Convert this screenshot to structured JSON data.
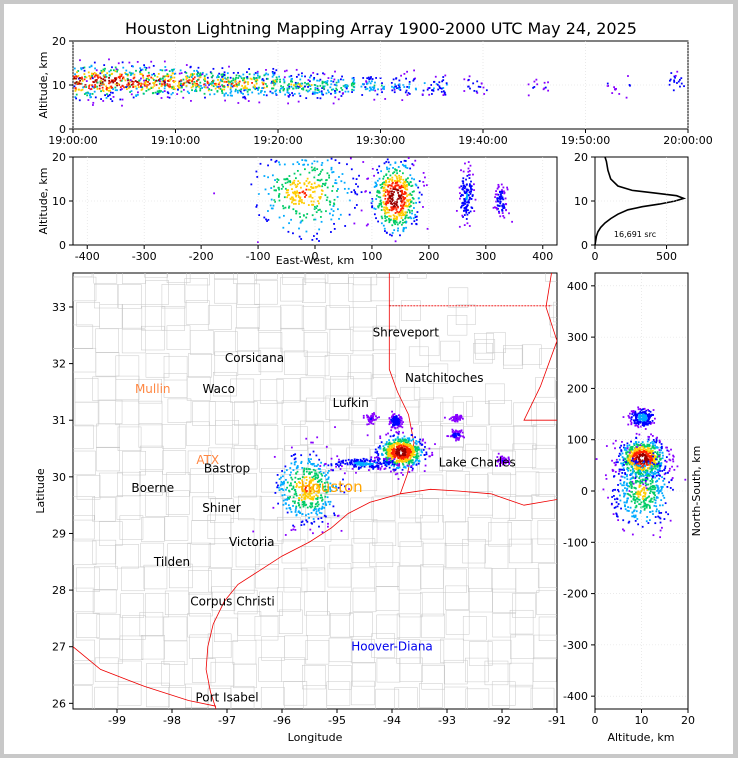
{
  "title": "Houston Lightning Mapping Array 1900-2000 UTC May 24, 2025",
  "colors": {
    "frame_border": "#c8c8c8",
    "state_border": "#ee0000",
    "county_border": "#c8c8c8",
    "profile_line": "#000000",
    "density_scale": [
      "#ffffff",
      "#8800ff",
      "#0000ff",
      "#00aaff",
      "#00cc66",
      "#ffcc00",
      "#ff2200",
      "#990000",
      "#ffffff"
    ]
  },
  "chart_data": [
    {
      "id": "time-height",
      "type": "scatter",
      "xlabel": "",
      "ylabel": "Altitude, km",
      "xlim": [
        "19:00:00",
        "20:00:00"
      ],
      "ylim": [
        0,
        20
      ],
      "xticks": [
        "19:00:00",
        "19:10:00",
        "19:20:00",
        "19:30:00",
        "19:40:00",
        "19:50:00",
        "20:00:00"
      ],
      "yticks": [
        0,
        10,
        20
      ],
      "clusters": [
        {
          "x_min": 0.0,
          "y_center": 11,
          "y_spread": 3.5,
          "density": 1.0
        },
        {
          "x_min": 2.5,
          "y_center": 11,
          "y_spread": 3.5,
          "density": 1.0
        },
        {
          "x_min": 5.0,
          "y_center": 11,
          "y_spread": 3.2,
          "density": 0.95
        },
        {
          "x_min": 7.5,
          "y_center": 11,
          "y_spread": 3.2,
          "density": 0.9
        },
        {
          "x_min": 10.0,
          "y_center": 11,
          "y_spread": 3.0,
          "density": 0.85
        },
        {
          "x_min": 12.5,
          "y_center": 10.5,
          "y_spread": 3.0,
          "density": 0.8
        },
        {
          "x_min": 15.0,
          "y_center": 10.5,
          "y_spread": 3.0,
          "density": 0.75
        },
        {
          "x_min": 17.5,
          "y_center": 10.5,
          "y_spread": 2.8,
          "density": 0.7
        },
        {
          "x_min": 20.0,
          "y_center": 10,
          "y_spread": 2.8,
          "density": 0.6
        },
        {
          "x_min": 22.5,
          "y_center": 10,
          "y_spread": 2.5,
          "density": 0.55
        },
        {
          "x_min": 25.0,
          "y_center": 10,
          "y_spread": 2.5,
          "density": 0.5
        },
        {
          "x_min": 28.0,
          "y_center": 10,
          "y_spread": 2.2,
          "density": 0.4
        },
        {
          "x_min": 31.0,
          "y_center": 10,
          "y_spread": 2.2,
          "density": 0.35
        },
        {
          "x_min": 34.0,
          "y_center": 10,
          "y_spread": 2.0,
          "density": 0.3
        },
        {
          "x_min": 38.0,
          "y_center": 10,
          "y_spread": 2.0,
          "density": 0.15
        },
        {
          "x_min": 44.0,
          "y_center": 10,
          "y_spread": 2.0,
          "density": 0.1
        },
        {
          "x_min": 52.0,
          "y_center": 10,
          "y_spread": 2.0,
          "density": 0.1
        },
        {
          "x_min": 58.0,
          "y_center": 11,
          "y_spread": 2.5,
          "density": 0.2
        }
      ]
    },
    {
      "id": "east-west-height",
      "type": "scatter",
      "xlabel": "East-West, km",
      "ylabel": "Altitude, km",
      "xlim": [
        -425,
        425
      ],
      "ylim": [
        0,
        20
      ],
      "xticks": [
        -400,
        -300,
        -200,
        -100,
        0,
        100,
        200,
        300,
        400
      ],
      "yticks": [
        0,
        10,
        20
      ],
      "clusters": [
        {
          "x": -20,
          "y": 12,
          "sx": 45,
          "sy": 5,
          "density": 0.7
        },
        {
          "x": 140,
          "y": 11,
          "sx": 20,
          "sy": 4,
          "density": 1.0
        },
        {
          "x": 265,
          "y": 11,
          "sx": 6,
          "sy": 3,
          "density": 0.25
        },
        {
          "x": 325,
          "y": 10,
          "sx": 6,
          "sy": 2,
          "density": 0.15
        }
      ]
    },
    {
      "id": "altitude-histogram",
      "type": "line",
      "xlabel": "",
      "ylabel": "",
      "xlim": [
        0,
        650
      ],
      "ylim": [
        0,
        20
      ],
      "xticks": [
        0,
        500
      ],
      "yticks": [
        0,
        10,
        20
      ],
      "annotation": "16,691 src",
      "x": [
        0,
        5,
        10,
        20,
        40,
        70,
        110,
        160,
        230,
        330,
        450,
        560,
        620,
        570,
        420,
        260,
        160,
        110,
        90,
        80,
        70
      ],
      "y": [
        0,
        1,
        2,
        3,
        4,
        5,
        6,
        7,
        8,
        8.7,
        9.3,
        10,
        10.6,
        11.2,
        11.8,
        12.4,
        13.4,
        15,
        17,
        19,
        20
      ]
    },
    {
      "id": "plan-view-map",
      "type": "scatter",
      "xlabel": "Longitude",
      "ylabel": "Latitude",
      "xlim": [
        -99.8,
        -91.0
      ],
      "ylim": [
        25.9,
        33.6
      ],
      "xticks": [
        -99,
        -98,
        -97,
        -96,
        -95,
        -94,
        -93,
        -92,
        -91
      ],
      "yticks": [
        26,
        27,
        28,
        29,
        30,
        31,
        32,
        33
      ],
      "cities": [
        {
          "name": "Shreveport",
          "lon": -93.75,
          "lat": 32.55,
          "color": "#000000"
        },
        {
          "name": "Corsicana",
          "lon": -96.5,
          "lat": 32.1,
          "color": "#000000"
        },
        {
          "name": "Natchitoches",
          "lon": -93.05,
          "lat": 31.75,
          "color": "#000000"
        },
        {
          "name": "Mullin",
          "lon": -98.35,
          "lat": 31.55,
          "color": "#ff8844"
        },
        {
          "name": "Waco",
          "lon": -97.15,
          "lat": 31.55,
          "color": "#000000"
        },
        {
          "name": "Lufkin",
          "lon": -94.75,
          "lat": 31.3,
          "color": "#000000"
        },
        {
          "name": "ATX",
          "lon": -97.35,
          "lat": 30.3,
          "color": "#ff8844"
        },
        {
          "name": "Bastrop",
          "lon": -97.0,
          "lat": 30.15,
          "color": "#000000"
        },
        {
          "name": "Lake Charles",
          "lon": -92.45,
          "lat": 30.25,
          "color": "#000000"
        },
        {
          "name": "Boerne",
          "lon": -98.35,
          "lat": 29.8,
          "color": "#000000"
        },
        {
          "name": "Houston",
          "lon": -95.1,
          "lat": 29.8,
          "color": "#ffa500"
        },
        {
          "name": "Shiner",
          "lon": -97.1,
          "lat": 29.45,
          "color": "#000000"
        },
        {
          "name": "Victoria",
          "lon": -96.55,
          "lat": 28.85,
          "color": "#000000"
        },
        {
          "name": "Tilden",
          "lon": -98.0,
          "lat": 28.5,
          "color": "#000000"
        },
        {
          "name": "Corpus Christi",
          "lon": -96.9,
          "lat": 27.8,
          "color": "#000000"
        },
        {
          "name": "Hoover-Diana",
          "lon": -94.0,
          "lat": 27.0,
          "color": "#0000ee"
        },
        {
          "name": "Port Isabel",
          "lon": -97.0,
          "lat": 26.1,
          "color": "#000000"
        }
      ],
      "clusters": [
        {
          "lon": -95.55,
          "lat": 29.8,
          "slon": 0.3,
          "slat": 0.3,
          "density": 0.7
        },
        {
          "lon": -93.85,
          "lat": 30.45,
          "slon": 0.2,
          "slat": 0.14,
          "density": 1.0
        },
        {
          "lon": -94.5,
          "lat": 30.25,
          "slon": 0.3,
          "slat": 0.05,
          "density": 0.3
        },
        {
          "lon": -93.95,
          "lat": 31.0,
          "slon": 0.05,
          "slat": 0.06,
          "density": 0.2
        },
        {
          "lon": -94.4,
          "lat": 31.05,
          "slon": 0.05,
          "slat": 0.05,
          "density": 0.08
        },
        {
          "lon": -92.85,
          "lat": 30.75,
          "slon": 0.06,
          "slat": 0.04,
          "density": 0.12
        },
        {
          "lon": -92.85,
          "lat": 31.05,
          "slon": 0.05,
          "slat": 0.03,
          "density": 0.08
        },
        {
          "lon": -92.0,
          "lat": 30.3,
          "slon": 0.06,
          "slat": 0.04,
          "density": 0.08
        }
      ]
    },
    {
      "id": "altitude-north-south",
      "type": "scatter",
      "xlabel": "Altitude, km",
      "ylabel": "North-South, km",
      "xlim": [
        0,
        20
      ],
      "ylim": [
        -425,
        425
      ],
      "xticks": [
        0,
        10,
        20
      ],
      "yticks": [
        -400,
        -300,
        -200,
        -100,
        0,
        100,
        200,
        300,
        400
      ],
      "clusters": [
        {
          "x": 10,
          "y": 65,
          "sx": 4,
          "sy": 18,
          "density": 1.0
        },
        {
          "x": 10,
          "y": 0,
          "sx": 5,
          "sy": 35,
          "density": 0.6
        },
        {
          "x": 10,
          "y": 145,
          "sx": 2,
          "sy": 8,
          "density": 0.35
        }
      ]
    }
  ]
}
